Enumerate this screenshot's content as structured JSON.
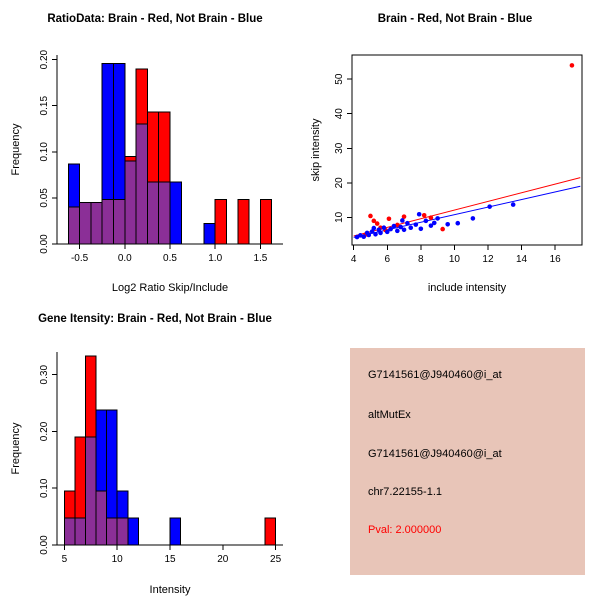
{
  "colors": {
    "brain": "#FF0000",
    "not_brain": "#0000FF",
    "overlap": "#8B2F97",
    "info_background": "#E8C5B8",
    "pval_text": "#FF0000"
  },
  "chart_data": [
    {
      "id": "ratio-histogram",
      "type": "histogram",
      "title": "RatioData: Brain - Red, Not Brain - Blue",
      "xlabel": "Log2 Ratio Skip/Include",
      "ylabel": "Frequency",
      "xlim": [
        -0.75,
        1.75
      ],
      "ylim": [
        0,
        0.205
      ],
      "xticks": [
        -0.5,
        0.0,
        0.5,
        1.0,
        1.5
      ],
      "xtick_labels": [
        "-0.5",
        "0.0",
        "0.5",
        "1.0",
        "1.5"
      ],
      "yticks": [
        0.0,
        0.05,
        0.1,
        0.15,
        0.2
      ],
      "ytick_labels": [
        "0.00",
        "0.05",
        "0.10",
        "0.15",
        "0.20"
      ],
      "bin_width": 0.125,
      "overlap_color": "#8B2F97",
      "grid": false,
      "legend": "none",
      "series": [
        {
          "name": "Brain",
          "color": "#FF0000",
          "bins": [
            [
              -0.625,
              0.04
            ],
            [
              -0.5,
              0.045
            ],
            [
              -0.375,
              0.045
            ],
            [
              -0.25,
              0.048
            ],
            [
              -0.125,
              0.048
            ],
            [
              0,
              0.095
            ],
            [
              0.125,
              0.19
            ],
            [
              0.25,
              0.143
            ],
            [
              0.375,
              0.143
            ],
            [
              1.0,
              0.048
            ],
            [
              1.25,
              0.048
            ],
            [
              1.5,
              0.048
            ]
          ]
        },
        {
          "name": "Not Brain",
          "color": "#0000FF",
          "bins": [
            [
              -0.625,
              0.087
            ],
            [
              -0.5,
              0.045
            ],
            [
              -0.375,
              0.045
            ],
            [
              -0.25,
              0.196
            ],
            [
              -0.125,
              0.196
            ],
            [
              0,
              0.09
            ],
            [
              0.125,
              0.13
            ],
            [
              0.25,
              0.067
            ],
            [
              0.375,
              0.067
            ],
            [
              0.5,
              0.067
            ],
            [
              0.875,
              0.022
            ]
          ]
        }
      ]
    },
    {
      "id": "intensity-scatter",
      "type": "scatter",
      "title": "Brain - Red, Not Brain - Blue",
      "xlabel": "include intensity",
      "ylabel": "skip intensity",
      "xlim": [
        3.9,
        17.6
      ],
      "ylim": [
        2,
        57
      ],
      "xticks": [
        4,
        6,
        8,
        10,
        12,
        14,
        16
      ],
      "xtick_labels": [
        "4",
        "6",
        "8",
        "10",
        "12",
        "14",
        "16"
      ],
      "yticks": [
        10,
        20,
        30,
        40,
        50
      ],
      "ytick_labels": [
        "10",
        "20",
        "30",
        "40",
        "50"
      ],
      "grid": false,
      "legend": "none",
      "series": [
        {
          "name": "Brain",
          "color": "#FF0000",
          "points": [
            [
              17,
              54
            ],
            [
              4.7,
              5.0
            ],
            [
              5.0,
              10.4
            ],
            [
              5.2,
              9.0
            ],
            [
              5.4,
              8.2
            ],
            [
              5.6,
              7.0
            ],
            [
              5.9,
              6.3
            ],
            [
              6.1,
              9.6
            ],
            [
              6.6,
              7.8
            ],
            [
              7.0,
              10.2
            ],
            [
              8.2,
              10.6
            ],
            [
              8.6,
              9.9
            ],
            [
              9.3,
              6.6
            ]
          ]
        },
        {
          "name": "Not Brain",
          "color": "#0000FF",
          "points": [
            [
              4.2,
              4.3
            ],
            [
              4.4,
              4.8
            ],
            [
              4.6,
              4.4
            ],
            [
              4.8,
              5.5
            ],
            [
              4.9,
              4.9
            ],
            [
              5.1,
              5.9
            ],
            [
              5.2,
              6.9
            ],
            [
              5.3,
              5.1
            ],
            [
              5.5,
              6.4
            ],
            [
              5.6,
              5.5
            ],
            [
              5.8,
              7.0
            ],
            [
              6.0,
              5.8
            ],
            [
              6.2,
              6.6
            ],
            [
              6.4,
              7.5
            ],
            [
              6.6,
              6.1
            ],
            [
              6.8,
              7.2
            ],
            [
              6.9,
              9.1
            ],
            [
              7.0,
              6.4
            ],
            [
              7.2,
              8.3
            ],
            [
              7.4,
              7.0
            ],
            [
              7.7,
              7.9
            ],
            [
              7.9,
              10.9
            ],
            [
              8.0,
              6.7
            ],
            [
              8.3,
              9.0
            ],
            [
              8.6,
              7.6
            ],
            [
              8.8,
              8.4
            ],
            [
              9.0,
              9.7
            ],
            [
              9.6,
              8.0
            ],
            [
              10.2,
              8.3
            ],
            [
              11.1,
              9.7
            ],
            [
              12.1,
              13.1
            ],
            [
              13.5,
              13.7
            ]
          ]
        }
      ],
      "lines": [
        {
          "name": "brain-fit",
          "color": "#FF0000",
          "x1": 4.0,
          "y1": 4.6,
          "x2": 17.5,
          "y2": 21.5
        },
        {
          "name": "not-brain-fit",
          "color": "#0000FF",
          "x1": 4.0,
          "y1": 4.2,
          "x2": 17.5,
          "y2": 19.0
        }
      ]
    },
    {
      "id": "gene-intensity-histogram",
      "type": "histogram",
      "title": "Gene Itensity: Brain - Red, Not Brain - Blue",
      "xlabel": "Intensity",
      "ylabel": "Frequency",
      "xlim": [
        4.3,
        25.7
      ],
      "ylim": [
        0,
        0.34
      ],
      "xticks": [
        5,
        10,
        15,
        20,
        25
      ],
      "xtick_labels": [
        "5",
        "10",
        "15",
        "20",
        "25"
      ],
      "yticks": [
        0.0,
        0.1,
        0.2,
        0.3
      ],
      "ytick_labels": [
        "0.00",
        "0.10",
        "0.20",
        "0.30"
      ],
      "bin_width": 1,
      "overlap_color": "#8B2F97",
      "grid": false,
      "legend": "none",
      "series": [
        {
          "name": "Brain",
          "color": "#FF0000",
          "bins": [
            [
              5,
              0.095
            ],
            [
              6,
              0.19
            ],
            [
              7,
              0.333
            ],
            [
              8,
              0.095
            ],
            [
              9,
              0.048
            ],
            [
              10,
              0.048
            ],
            [
              24,
              0.048
            ]
          ]
        },
        {
          "name": "Not Brain",
          "color": "#0000FF",
          "bins": [
            [
              5,
              0.048
            ],
            [
              6,
              0.048
            ],
            [
              7,
              0.19
            ],
            [
              8,
              0.238
            ],
            [
              9,
              0.238
            ],
            [
              10,
              0.095
            ],
            [
              11,
              0.048
            ],
            [
              15,
              0.048
            ]
          ]
        }
      ]
    }
  ],
  "info_panel": {
    "background": "#E8C5B8",
    "lines": [
      {
        "text": "G7141561@J940460@i_at",
        "color": "#000000"
      },
      {
        "text": "altMutEx",
        "color": "#000000"
      },
      {
        "text": "G7141561@J940460@i_at",
        "color": "#000000"
      },
      {
        "text": "chr7.22155-1.1",
        "color": "#000000"
      },
      {
        "text": "Pval: 2.000000",
        "color": "#FF0000"
      }
    ]
  }
}
